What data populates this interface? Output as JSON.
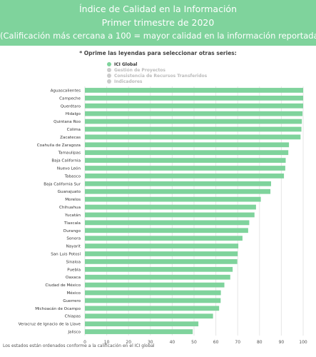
{
  "header": {
    "line1": "Índice de Calidad en la Información",
    "line2": "Primer trimestre de 2020",
    "line3": "(Calificación más cercana a 100 = mayor calidad en la información reportada)",
    "background": "#7fd39c"
  },
  "instruction": "* Oprime las leyendas para seleccionar otras series:",
  "legend": [
    {
      "label": "ICI Global",
      "color": "#7fd39c",
      "active": true
    },
    {
      "label": "Gestión de Proyectos",
      "color": "#cccccc",
      "active": false
    },
    {
      "label": "Consistencia de Recursos Transferidos",
      "color": "#cccccc",
      "active": false
    },
    {
      "label": "Indicadores",
      "color": "#cccccc",
      "active": false
    }
  ],
  "footnote": "Los estados están ordenados conforme a la calificación en el ICI global",
  "chart_data": {
    "type": "bar",
    "orientation": "horizontal",
    "bar_color": "#7fd39c",
    "grid": true,
    "xlim": [
      0,
      100
    ],
    "xticks": [
      0,
      10,
      20,
      30,
      40,
      50,
      60,
      70,
      80,
      90,
      100
    ],
    "categories": [
      "Aguascalientes",
      "Campeche",
      "Querétaro",
      "Hidalgo",
      "Quintana Roo",
      "Colima",
      "Zacatecas",
      "Coahuila de Zaragoza",
      "Tamaulipas",
      "Baja California",
      "Nuevo León",
      "Tabasco",
      "Baja California Sur",
      "Guanajuato",
      "Morelos",
      "Chihuahua",
      "Yucatán",
      "Tlaxcala",
      "Durango",
      "Sonora",
      "Nayarit",
      "San Luis Potosí",
      "Sinaloa",
      "Puebla",
      "Oaxaca",
      "Ciudad de México",
      "México",
      "Guerrero",
      "Michoacán de Ocampo",
      "Chiapas",
      "Veracruz de Ignacio de la Llave",
      "Jalisco"
    ],
    "series": [
      {
        "name": "ICI Global",
        "values": [
          100,
          100,
          100,
          99.7,
          99.4,
          99.2,
          98.8,
          93.5,
          93.2,
          92,
          91.8,
          91.2,
          85.3,
          85,
          80.6,
          78.4,
          77.7,
          75.3,
          74.8,
          72.2,
          70.3,
          70,
          69.8,
          67.7,
          66.6,
          63.9,
          62.3,
          62.2,
          61.5,
          58.7,
          52,
          49.4
        ]
      }
    ]
  }
}
